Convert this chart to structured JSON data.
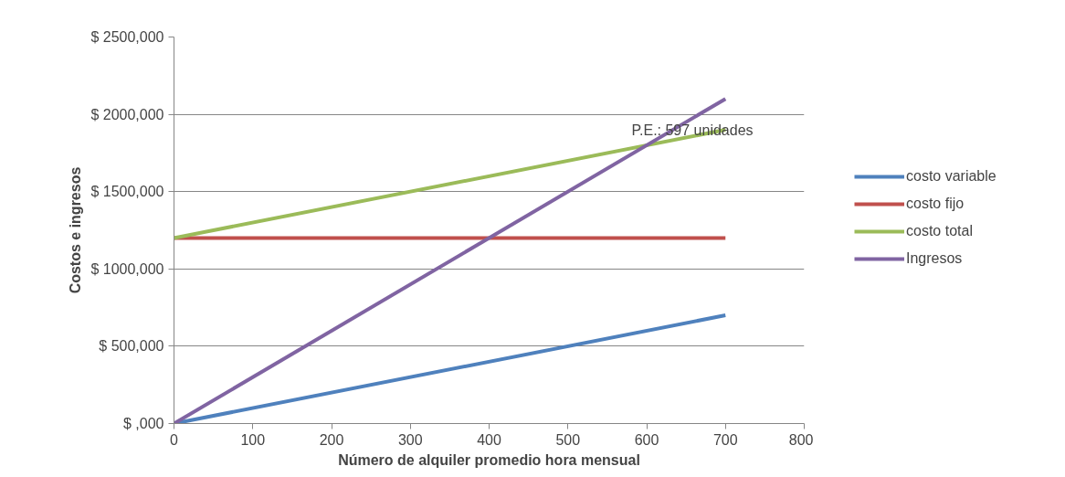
{
  "chart_data": {
    "type": "line",
    "xlabel": "Número de alquiler promedio hora mensual",
    "ylabel": "Costos e ingresos",
    "x": [
      0,
      700
    ],
    "series": [
      {
        "name": "costo variable",
        "color": "#4f81bd",
        "values": [
          0,
          700000
        ]
      },
      {
        "name": "costo fijo",
        "color": "#c0504d",
        "values": [
          1200000,
          1200000
        ]
      },
      {
        "name": "costo total",
        "color": "#9bbb59",
        "values": [
          1200000,
          1900000
        ]
      },
      {
        "name": "Ingresos",
        "color": "#8064a2",
        "values": [
          0,
          2100000
        ]
      }
    ],
    "xlim": [
      0,
      800
    ],
    "xticks": [
      0,
      100,
      200,
      300,
      400,
      500,
      600,
      700,
      800
    ],
    "ylim": [
      0,
      2500000
    ],
    "yticks": [
      {
        "value": 0,
        "label": "$ ,000"
      },
      {
        "value": 500000,
        "label": "$ 500,000"
      },
      {
        "value": 1000000,
        "label": "$ 1000,000"
      },
      {
        "value": 1500000,
        "label": "$ 1500,000"
      },
      {
        "value": 2000000,
        "label": "$ 2000,000"
      },
      {
        "value": 2500000,
        "label": "$ 2500,000"
      }
    ],
    "grid": "y",
    "legend": "right",
    "marker": "none",
    "line_style": "solid",
    "annotations": [
      {
        "text": "P.E.: 597 unidades",
        "x": 597,
        "y": 1791000
      }
    ]
  }
}
